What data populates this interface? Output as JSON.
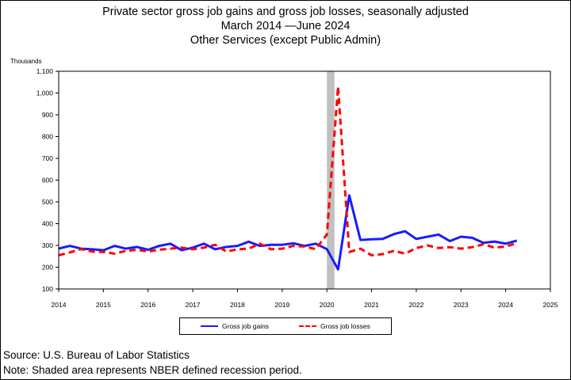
{
  "chart_data": {
    "type": "line",
    "title": "Private sector gross job gains and gross job losses, seasonally adjusted",
    "subtitle_dates": "March 2014 —June 2024",
    "subtitle_industry": "Other Services (except Public Admin)",
    "ylabel": "Thousands",
    "ylim": [
      100,
      1100
    ],
    "y_ticks": [
      100,
      200,
      300,
      400,
      500,
      600,
      700,
      800,
      900,
      1000,
      1100
    ],
    "y_tick_labels": [
      "100",
      "200",
      "300",
      "400",
      "500",
      "600",
      "700",
      "800",
      "900",
      "1,000",
      "1,100"
    ],
    "xlim": [
      2014,
      2025
    ],
    "x_ticks": [
      "2014",
      "2015",
      "2016",
      "2017",
      "2018",
      "2019",
      "2020",
      "2021",
      "2022",
      "2023",
      "2024",
      "2025"
    ],
    "recession_shading": {
      "start": 2020.0,
      "end": 2020.17
    },
    "grid": false,
    "legend_position": "bottom",
    "series": [
      {
        "name": "Gross job gains",
        "color": "#1a1aff",
        "style": "solid",
        "x": [
          2014.0,
          2014.25,
          2014.5,
          2014.75,
          2015.0,
          2015.25,
          2015.5,
          2015.75,
          2016.0,
          2016.25,
          2016.5,
          2016.75,
          2017.0,
          2017.25,
          2017.5,
          2017.75,
          2018.0,
          2018.25,
          2018.5,
          2018.75,
          2019.0,
          2019.25,
          2019.5,
          2019.75,
          2020.0,
          2020.25,
          2020.5,
          2020.75,
          2021.0,
          2021.25,
          2021.5,
          2021.75,
          2022.0,
          2022.25,
          2022.5,
          2022.75,
          2023.0,
          2023.25,
          2023.5,
          2023.75,
          2024.0,
          2024.25
        ],
        "values": [
          285,
          298,
          285,
          282,
          278,
          298,
          285,
          293,
          280,
          298,
          308,
          278,
          290,
          308,
          282,
          293,
          298,
          317,
          298,
          303,
          303,
          310,
          298,
          308,
          283,
          190,
          530,
          325,
          328,
          330,
          352,
          365,
          330,
          340,
          350,
          320,
          340,
          335,
          312,
          318,
          308,
          322
        ]
      },
      {
        "name": "Gross job losses",
        "color": "#ff0000",
        "style": "dashed",
        "x": [
          2014.0,
          2014.25,
          2014.5,
          2014.75,
          2015.0,
          2015.25,
          2015.5,
          2015.75,
          2016.0,
          2016.25,
          2016.5,
          2016.75,
          2017.0,
          2017.25,
          2017.5,
          2017.75,
          2018.0,
          2018.25,
          2018.5,
          2018.75,
          2019.0,
          2019.25,
          2019.5,
          2019.75,
          2020.0,
          2020.25,
          2020.5,
          2020.75,
          2021.0,
          2021.25,
          2021.5,
          2021.75,
          2022.0,
          2022.25,
          2022.5,
          2022.75,
          2023.0,
          2023.25,
          2023.5,
          2023.75,
          2024.0,
          2024.25
        ],
        "values": [
          255,
          268,
          283,
          272,
          270,
          262,
          275,
          280,
          272,
          280,
          285,
          290,
          282,
          290,
          303,
          272,
          282,
          285,
          308,
          282,
          285,
          298,
          295,
          283,
          350,
          1030,
          270,
          285,
          255,
          260,
          275,
          262,
          288,
          300,
          288,
          292,
          285,
          292,
          305,
          290,
          295,
          310
        ]
      }
    ]
  },
  "source_note": "Source: U.S. Bureau of Labor Statistics",
  "shading_note": "Note: Shaded area represents NBER defined recession period."
}
